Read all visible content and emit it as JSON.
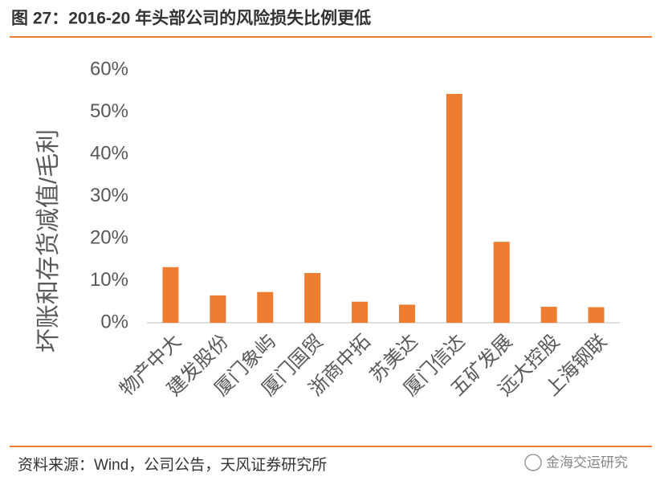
{
  "chart_data": {
    "type": "bar",
    "title": "图 27：2016-20 年头部公司的风险损失比例更低",
    "y_label": "坏账和存货减值/毛利",
    "source": "资料来源：Wind，公司公告，天风证券研究所",
    "watermark": "金海交运研究",
    "categories": [
      "物产中大",
      "建发股份",
      "厦门象屿",
      "厦门国贸",
      "浙商中拓",
      "苏美达",
      "厦门信达",
      "五矿发展",
      "远大控股",
      "上海钢联"
    ],
    "values": [
      13.2,
      6.5,
      7.3,
      11.8,
      5.0,
      4.3,
      54.3,
      19.2,
      3.8,
      3.7
    ],
    "color": "#ed7d31",
    "ylim": [
      0,
      60
    ],
    "yticks": [
      {
        "value": 0,
        "label": "0%"
      },
      {
        "value": 10,
        "label": "10%"
      },
      {
        "value": 20,
        "label": "20%"
      },
      {
        "value": 30,
        "label": "30%"
      },
      {
        "value": 40,
        "label": "40%"
      },
      {
        "value": 50,
        "label": "50%"
      },
      {
        "value": 60,
        "label": "60%"
      }
    ]
  }
}
